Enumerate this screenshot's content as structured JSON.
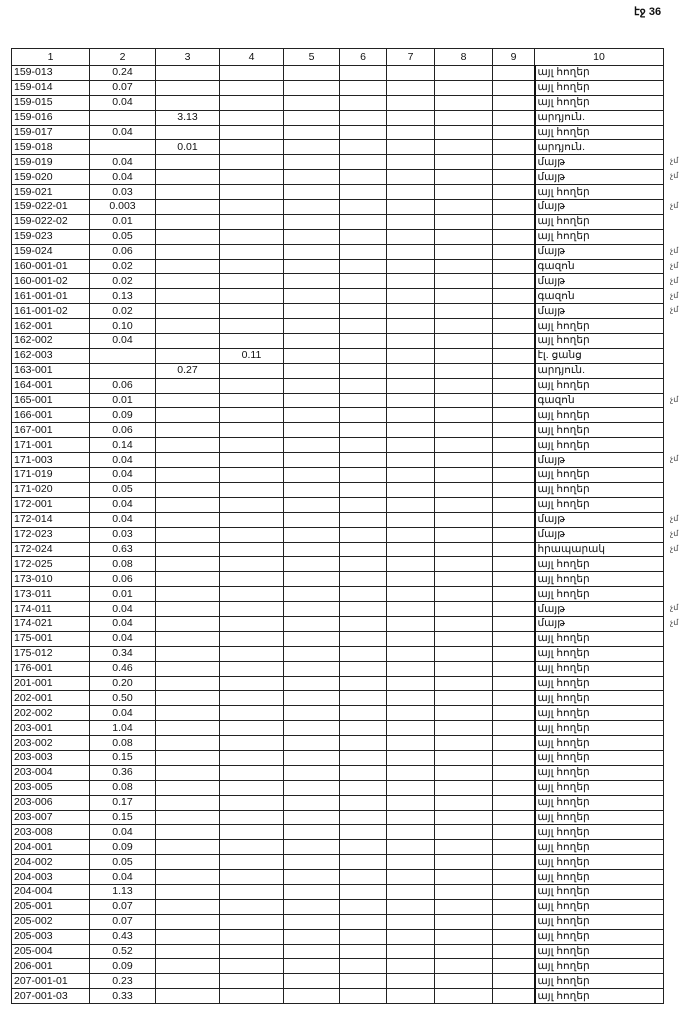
{
  "page_number": "էջ 36",
  "table": {
    "headers": [
      "1",
      "2",
      "3",
      "4",
      "5",
      "6",
      "7",
      "8",
      "9",
      "10"
    ],
    "rows": [
      {
        "id": "159-013",
        "c2": "0.24",
        "c3": "",
        "c4": "",
        "type": "այլ հողեր",
        "mark": ""
      },
      {
        "id": "159-014",
        "c2": "0.07",
        "c3": "",
        "c4": "",
        "type": "այլ հողեր",
        "mark": ""
      },
      {
        "id": "159-015",
        "c2": "0.04",
        "c3": "",
        "c4": "",
        "type": "այլ հողեր",
        "mark": ""
      },
      {
        "id": "159-016",
        "c2": "",
        "c3": "3.13",
        "c4": "",
        "type": "արդյուն.",
        "mark": ""
      },
      {
        "id": "159-017",
        "c2": "0.04",
        "c3": "",
        "c4": "",
        "type": "այլ հողեր",
        "mark": ""
      },
      {
        "id": "159-018",
        "c2": "",
        "c3": "0.01",
        "c4": "",
        "type": "արդյուն.",
        "mark": ""
      },
      {
        "id": "159-019",
        "c2": "0.04",
        "c3": "",
        "c4": "",
        "type": "մայթ",
        "mark": "չմ"
      },
      {
        "id": "159-020",
        "c2": "0.04",
        "c3": "",
        "c4": "",
        "type": "մայթ",
        "mark": "չմ"
      },
      {
        "id": "159-021",
        "c2": "0.03",
        "c3": "",
        "c4": "",
        "type": "այլ հողեր",
        "mark": ""
      },
      {
        "id": "159-022-01",
        "c2": "0.003",
        "c3": "",
        "c4": "",
        "type": "մայթ",
        "mark": "չմ"
      },
      {
        "id": "159-022-02",
        "c2": "0.01",
        "c3": "",
        "c4": "",
        "type": "այլ հողեր",
        "mark": ""
      },
      {
        "id": "159-023",
        "c2": "0.05",
        "c3": "",
        "c4": "",
        "type": "այլ հողեր",
        "mark": ""
      },
      {
        "id": "159-024",
        "c2": "0.06",
        "c3": "",
        "c4": "",
        "type": "մայթ",
        "mark": "չմ"
      },
      {
        "id": "160-001-01",
        "c2": "0.02",
        "c3": "",
        "c4": "",
        "type": "գազոն",
        "mark": "չմ"
      },
      {
        "id": "160-001-02",
        "c2": "0.02",
        "c3": "",
        "c4": "",
        "type": "մայթ",
        "mark": "չմ"
      },
      {
        "id": "161-001-01",
        "c2": "0.13",
        "c3": "",
        "c4": "",
        "type": "գազոն",
        "mark": "չմ"
      },
      {
        "id": "161-001-02",
        "c2": "0.02",
        "c3": "",
        "c4": "",
        "type": "մայթ",
        "mark": "չմ"
      },
      {
        "id": "162-001",
        "c2": "0.10",
        "c3": "",
        "c4": "",
        "type": "այլ հողեր",
        "mark": ""
      },
      {
        "id": "162-002",
        "c2": "0.04",
        "c3": "",
        "c4": "",
        "type": "այլ հողեր",
        "mark": ""
      },
      {
        "id": "162-003",
        "c2": "",
        "c3": "",
        "c4": "0.11",
        "type": "էլ. ցանց",
        "mark": ""
      },
      {
        "id": "163-001",
        "c2": "",
        "c3": "0.27",
        "c4": "",
        "type": "արդյուն.",
        "mark": ""
      },
      {
        "id": "164-001",
        "c2": "0.06",
        "c3": "",
        "c4": "",
        "type": "այլ հողեր",
        "mark": ""
      },
      {
        "id": "165-001",
        "c2": "0.01",
        "c3": "",
        "c4": "",
        "type": "գազոն",
        "mark": "չմ"
      },
      {
        "id": "166-001",
        "c2": "0.09",
        "c3": "",
        "c4": "",
        "type": "այլ հողեր",
        "mark": ""
      },
      {
        "id": "167-001",
        "c2": "0.06",
        "c3": "",
        "c4": "",
        "type": "այլ հողեր",
        "mark": ""
      },
      {
        "id": "171-001",
        "c2": "0.14",
        "c3": "",
        "c4": "",
        "type": "այլ հողեր",
        "mark": ""
      },
      {
        "id": "171-003",
        "c2": "0.04",
        "c3": "",
        "c4": "",
        "type": "մայթ",
        "mark": "չմ"
      },
      {
        "id": "171-019",
        "c2": "0.04",
        "c3": "",
        "c4": "",
        "type": "այլ հողեր",
        "mark": ""
      },
      {
        "id": "171-020",
        "c2": "0.05",
        "c3": "",
        "c4": "",
        "type": "այլ հողեր",
        "mark": ""
      },
      {
        "id": "172-001",
        "c2": "0.04",
        "c3": "",
        "c4": "",
        "type": "այլ հողեր",
        "mark": ""
      },
      {
        "id": "172-014",
        "c2": "0.04",
        "c3": "",
        "c4": "",
        "type": "մայթ",
        "mark": "չմ"
      },
      {
        "id": "172-023",
        "c2": "0.03",
        "c3": "",
        "c4": "",
        "type": "մայթ",
        "mark": "չմ"
      },
      {
        "id": "172-024",
        "c2": "0.63",
        "c3": "",
        "c4": "",
        "type": "հրապարակ",
        "mark": "չմ"
      },
      {
        "id": "172-025",
        "c2": "0.08",
        "c3": "",
        "c4": "",
        "type": "այլ հողեր",
        "mark": ""
      },
      {
        "id": "173-010",
        "c2": "0.06",
        "c3": "",
        "c4": "",
        "type": "այլ հողեր",
        "mark": ""
      },
      {
        "id": "173-011",
        "c2": "0.01",
        "c3": "",
        "c4": "",
        "type": "այլ հողեր",
        "mark": ""
      },
      {
        "id": "174-011",
        "c2": "0.04",
        "c3": "",
        "c4": "",
        "type": "մայթ",
        "mark": "չմ"
      },
      {
        "id": "174-021",
        "c2": "0.04",
        "c3": "",
        "c4": "",
        "type": "մայթ",
        "mark": "չմ"
      },
      {
        "id": "175-001",
        "c2": "0.04",
        "c3": "",
        "c4": "",
        "type": "այլ հողեր",
        "mark": ""
      },
      {
        "id": "175-012",
        "c2": "0.34",
        "c3": "",
        "c4": "",
        "type": "այլ հողեր",
        "mark": ""
      },
      {
        "id": "176-001",
        "c2": "0.46",
        "c3": "",
        "c4": "",
        "type": "այլ հողեր",
        "mark": ""
      },
      {
        "id": "201-001",
        "c2": "0.20",
        "c3": "",
        "c4": "",
        "type": "այլ հողեր",
        "mark": ""
      },
      {
        "id": "202-001",
        "c2": "0.50",
        "c3": "",
        "c4": "",
        "type": "այլ հողեր",
        "mark": ""
      },
      {
        "id": "202-002",
        "c2": "0.04",
        "c3": "",
        "c4": "",
        "type": "այլ հողեր",
        "mark": ""
      },
      {
        "id": "203-001",
        "c2": "1.04",
        "c3": "",
        "c4": "",
        "type": "այլ հողեր",
        "mark": ""
      },
      {
        "id": "203-002",
        "c2": "0.08",
        "c3": "",
        "c4": "",
        "type": "այլ հողեր",
        "mark": ""
      },
      {
        "id": "203-003",
        "c2": "0.15",
        "c3": "",
        "c4": "",
        "type": "այլ հողեր",
        "mark": ""
      },
      {
        "id": "203-004",
        "c2": "0.36",
        "c3": "",
        "c4": "",
        "type": "այլ հողեր",
        "mark": ""
      },
      {
        "id": "203-005",
        "c2": "0.08",
        "c3": "",
        "c4": "",
        "type": "այլ հողեր",
        "mark": ""
      },
      {
        "id": "203-006",
        "c2": "0.17",
        "c3": "",
        "c4": "",
        "type": "այլ հողեր",
        "mark": ""
      },
      {
        "id": "203-007",
        "c2": "0.15",
        "c3": "",
        "c4": "",
        "type": "այլ հողեր",
        "mark": ""
      },
      {
        "id": "203-008",
        "c2": "0.04",
        "c3": "",
        "c4": "",
        "type": "այլ հողեր",
        "mark": ""
      },
      {
        "id": "204-001",
        "c2": "0.09",
        "c3": "",
        "c4": "",
        "type": "այլ հողեր",
        "mark": ""
      },
      {
        "id": "204-002",
        "c2": "0.05",
        "c3": "",
        "c4": "",
        "type": "այլ հողեր",
        "mark": ""
      },
      {
        "id": "204-003",
        "c2": "0.04",
        "c3": "",
        "c4": "",
        "type": "այլ հողեր",
        "mark": ""
      },
      {
        "id": "204-004",
        "c2": "1.13",
        "c3": "",
        "c4": "",
        "type": "այլ հողեր",
        "mark": ""
      },
      {
        "id": "205-001",
        "c2": "0.07",
        "c3": "",
        "c4": "",
        "type": "այլ հողեր",
        "mark": ""
      },
      {
        "id": "205-002",
        "c2": "0.07",
        "c3": "",
        "c4": "",
        "type": "այլ հողեր",
        "mark": ""
      },
      {
        "id": "205-003",
        "c2": "0.43",
        "c3": "",
        "c4": "",
        "type": "այլ հողեր",
        "mark": ""
      },
      {
        "id": "205-004",
        "c2": "0.52",
        "c3": "",
        "c4": "",
        "type": "այլ հողեր",
        "mark": ""
      },
      {
        "id": "206-001",
        "c2": "0.09",
        "c3": "",
        "c4": "",
        "type": "այլ հողեր",
        "mark": ""
      },
      {
        "id": "207-001-01",
        "c2": "0.23",
        "c3": "",
        "c4": "",
        "type": "այլ հողեր",
        "mark": ""
      },
      {
        "id": "207-001-03",
        "c2": "0.33",
        "c3": "",
        "c4": "",
        "type": "այլ հողեր",
        "mark": ""
      }
    ]
  }
}
